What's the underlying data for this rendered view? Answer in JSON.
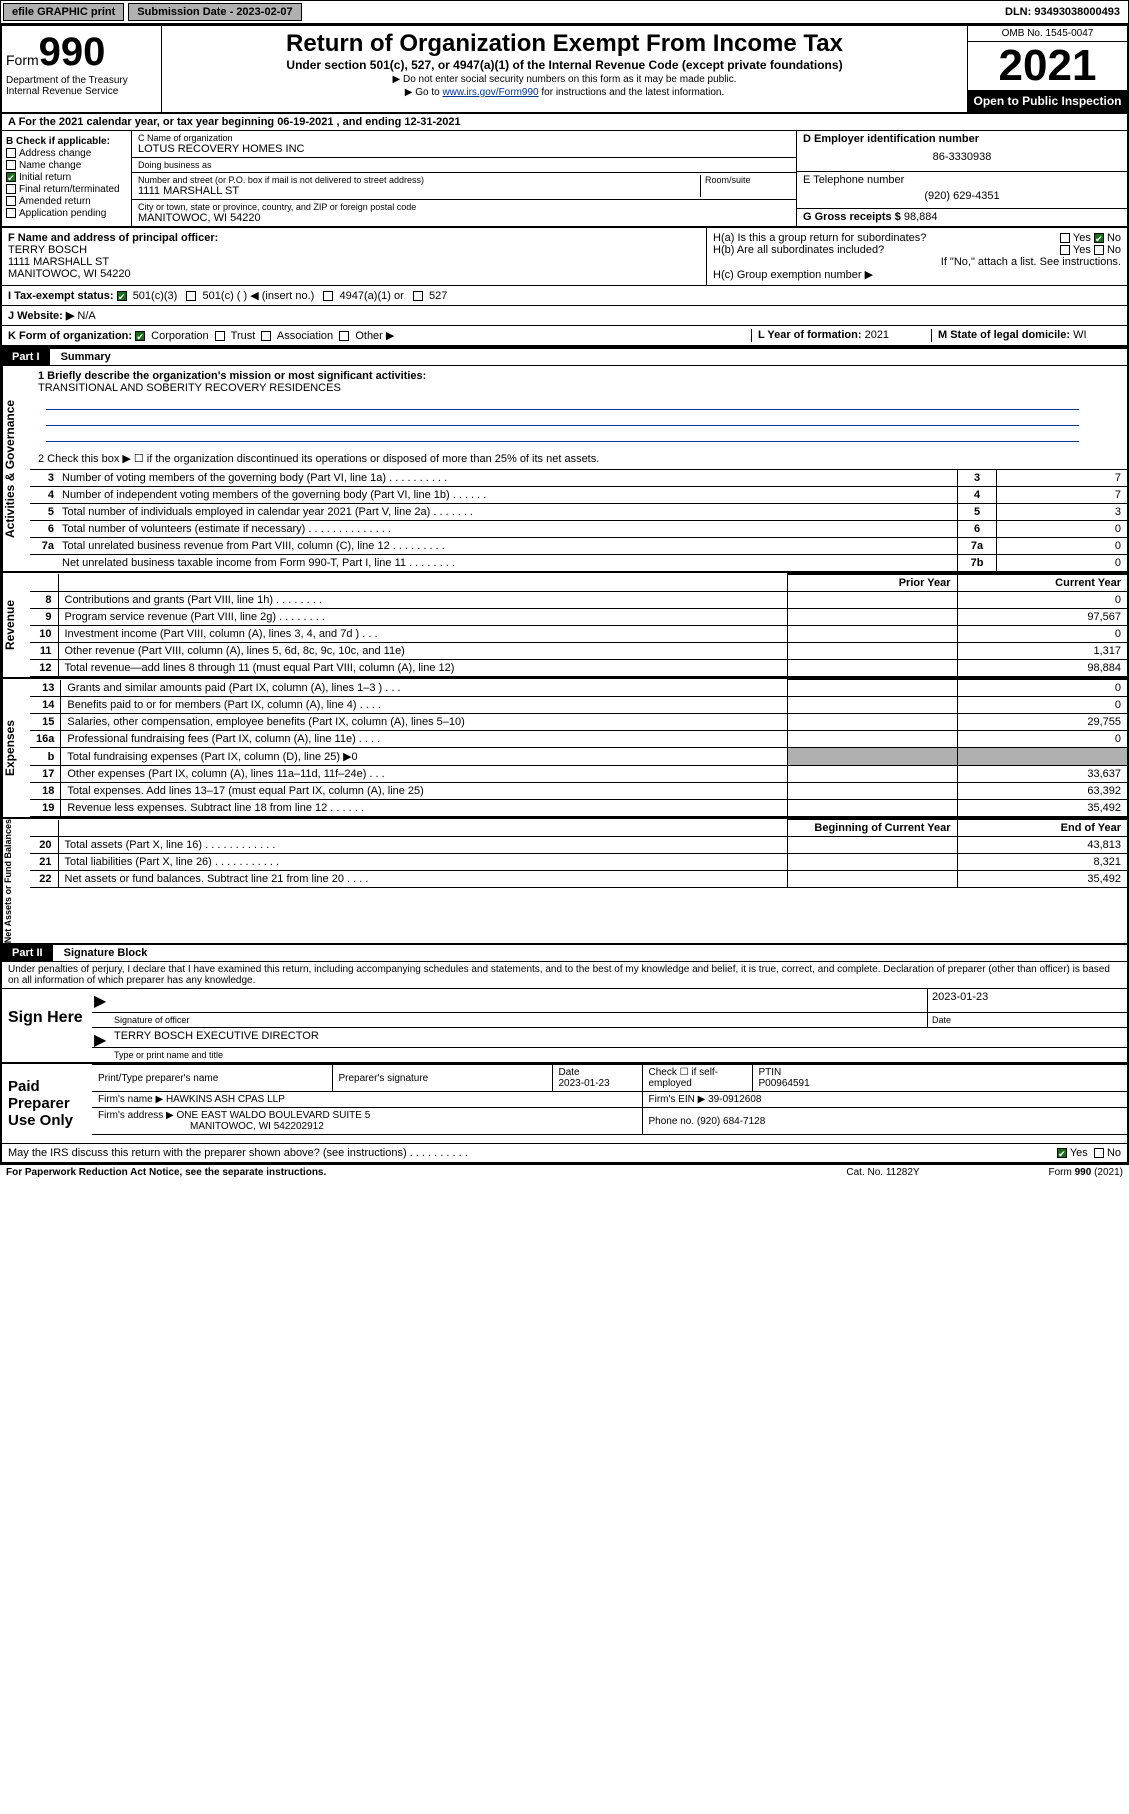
{
  "topbar": {
    "efile": "efile GRAPHIC print",
    "submission_label": "Submission Date - 2023-02-07",
    "dln_label": "DLN: 93493038000493"
  },
  "header": {
    "form_prefix": "Form",
    "form_number": "990",
    "dept": "Department of the Treasury\nInternal Revenue Service",
    "title": "Return of Organization Exempt From Income Tax",
    "sub": "Under section 501(c), 527, or 4947(a)(1) of the Internal Revenue Code (except private foundations)",
    "note1": "▶ Do not enter social security numbers on this form as it may be made public.",
    "note2_pre": "▶ Go to ",
    "note2_link": "www.irs.gov/Form990",
    "note2_post": " for instructions and the latest information.",
    "omb": "OMB No. 1545-0047",
    "year": "2021",
    "open_pub": "Open to Public Inspection"
  },
  "a": {
    "text": "A For the 2021 calendar year, or tax year beginning 06-19-2021   , and ending 12-31-2021"
  },
  "b": {
    "label": "B Check if applicable:",
    "items": [
      "Address change",
      "Name change",
      "Initial return",
      "Final return/terminated",
      "Amended return",
      "Application pending"
    ],
    "checked_index": 2
  },
  "c": {
    "name_label": "C Name of organization",
    "name": "LOTUS RECOVERY HOMES INC",
    "dba_label": "Doing business as",
    "dba": "",
    "street_label": "Number and street (or P.O. box if mail is not delivered to street address)",
    "room_label": "Room/suite",
    "street": "1111 MARSHALL ST",
    "city_label": "City or town, state or province, country, and ZIP or foreign postal code",
    "city": "MANITOWOC, WI  54220"
  },
  "d": {
    "label": "D Employer identification number",
    "value": "86-3330938"
  },
  "e": {
    "label": "E Telephone number",
    "value": "(920) 629-4351"
  },
  "g": {
    "label": "G Gross receipts $",
    "value": "98,884"
  },
  "f": {
    "label": "F Name and address of principal officer:",
    "name": "TERRY BOSCH",
    "street": "1111 MARSHALL ST",
    "city": "MANITOWOC, WI  54220"
  },
  "h": {
    "a_label": "H(a)  Is this a group return for subordinates?",
    "a_yes": "Yes",
    "a_no": "No",
    "b_label": "H(b)  Are all subordinates included?",
    "b_yes": "Yes",
    "b_no": "No",
    "b_note": "If \"No,\" attach a list. See instructions.",
    "c_label": "H(c)  Group exemption number ▶"
  },
  "i": {
    "label": "I   Tax-exempt status:",
    "opts": [
      "501(c)(3)",
      "501(c) (  ) ◀ (insert no.)",
      "4947(a)(1) or",
      "527"
    ]
  },
  "j": {
    "label": "J   Website: ▶",
    "value": "N/A"
  },
  "k": {
    "label": "K Form of organization:",
    "opts": [
      "Corporation",
      "Trust",
      "Association",
      "Other ▶"
    ]
  },
  "l": {
    "label": "L Year of formation:",
    "value": "2021"
  },
  "m": {
    "label": "M State of legal domicile:",
    "value": "WI"
  },
  "part1": {
    "hdr": "Part I",
    "title": "Summary",
    "q1_label": "1   Briefly describe the organization's mission or most significant activities:",
    "q1_text": "TRANSITIONAL AND SOBERITY RECOVERY RESIDENCES",
    "q2": "2   Check this box ▶ ☐  if the organization discontinued its operations or disposed of more than 25% of its net assets.",
    "sidebar_gov": "Activities & Governance",
    "sidebar_rev": "Revenue",
    "sidebar_exp": "Expenses",
    "sidebar_na": "Net Assets or Fund Balances",
    "gov_rows": [
      {
        "n": "3",
        "d": "Number of voting members of the governing body (Part VI, line 1a)  .    .    .    .    .    .    .    .    .    .",
        "box": "3",
        "v": "7"
      },
      {
        "n": "4",
        "d": "Number of independent voting members of the governing body (Part VI, line 1b)   .    .    .    .    .    .",
        "box": "4",
        "v": "7"
      },
      {
        "n": "5",
        "d": "Total number of individuals employed in calendar year 2021 (Part V, line 2a)    .    .    .    .    .    .    .",
        "box": "5",
        "v": "3"
      },
      {
        "n": "6",
        "d": "Total number of volunteers (estimate if necessary)   .    .    .    .    .    .    .    .    .    .    .    .    .    .",
        "box": "6",
        "v": "0"
      },
      {
        "n": "7a",
        "d": "Total unrelated business revenue from Part VIII, column (C), line 12   .    .    .    .    .    .    .    .    .",
        "box": "7a",
        "v": "0"
      },
      {
        "n": "",
        "d": "Net unrelated business taxable income from Form 990-T, Part I, line 11    .    .    .    .    .    .    .    .",
        "box": "7b",
        "v": "0"
      }
    ],
    "col_prior": "Prior Year",
    "col_curr": "Current Year",
    "rev_rows": [
      {
        "n": "8",
        "d": "Contributions and grants (Part VIII, line 1h)   .    .    .    .    .    .    .    .",
        "p": "",
        "c": "0"
      },
      {
        "n": "9",
        "d": "Program service revenue (Part VIII, line 2g)   .    .    .    .    .    .    .    .",
        "p": "",
        "c": "97,567"
      },
      {
        "n": "10",
        "d": "Investment income (Part VIII, column (A), lines 3, 4, and 7d )   .    .    .",
        "p": "",
        "c": "0"
      },
      {
        "n": "11",
        "d": "Other revenue (Part VIII, column (A), lines 5, 6d, 8c, 9c, 10c, and 11e)",
        "p": "",
        "c": "1,317"
      },
      {
        "n": "12",
        "d": "Total revenue—add lines 8 through 11 (must equal Part VIII, column (A), line 12)",
        "p": "",
        "c": "98,884"
      }
    ],
    "exp_rows": [
      {
        "n": "13",
        "d": "Grants and similar amounts paid (Part IX, column (A), lines 1–3 )   .    .    .",
        "p": "",
        "c": "0"
      },
      {
        "n": "14",
        "d": "Benefits paid to or for members (Part IX, column (A), line 4)   .    .    .    .",
        "p": "",
        "c": "0"
      },
      {
        "n": "15",
        "d": "Salaries, other compensation, employee benefits (Part IX, column (A), lines 5–10)",
        "p": "",
        "c": "29,755"
      },
      {
        "n": "16a",
        "d": "Professional fundraising fees (Part IX, column (A), line 11e)   .    .    .    .",
        "p": "",
        "c": "0"
      },
      {
        "n": "b",
        "d": "Total fundraising expenses (Part IX, column (D), line 25) ▶0",
        "p": "shade",
        "c": "shade"
      },
      {
        "n": "17",
        "d": "Other expenses (Part IX, column (A), lines 11a–11d, 11f–24e)   .    .    .",
        "p": "",
        "c": "33,637"
      },
      {
        "n": "18",
        "d": "Total expenses. Add lines 13–17 (must equal Part IX, column (A), line 25)",
        "p": "",
        "c": "63,392"
      },
      {
        "n": "19",
        "d": "Revenue less expenses. Subtract line 18 from line 12   .    .    .    .    .    .",
        "p": "",
        "c": "35,492"
      }
    ],
    "col_begin": "Beginning of Current Year",
    "col_end": "End of Year",
    "na_rows": [
      {
        "n": "20",
        "d": "Total assets (Part X, line 16)   .    .    .    .    .    .    .    .    .    .    .    .",
        "p": "",
        "c": "43,813"
      },
      {
        "n": "21",
        "d": "Total liabilities (Part X, line 26)   .    .    .    .    .    .    .    .    .    .    .",
        "p": "",
        "c": "8,321"
      },
      {
        "n": "22",
        "d": "Net assets or fund balances. Subtract line 21 from line 20   .    .    .    .",
        "p": "",
        "c": "35,492"
      }
    ]
  },
  "part2": {
    "hdr": "Part II",
    "title": "Signature Block",
    "decl": "Under penalties of perjury, I declare that I have examined this return, including accompanying schedules and statements, and to the best of my knowledge and belief, it is true, correct, and complete. Declaration of preparer (other than officer) is based on all information of which preparer has any knowledge.",
    "sign_here": "Sign Here",
    "sig_officer_label": "Signature of officer",
    "date_label": "Date",
    "date_val": "2023-01-23",
    "typed_name": "TERRY BOSCH  EXECUTIVE DIRECTOR",
    "typed_label": "Type or print name and title",
    "paid_label": "Paid Preparer Use Only",
    "prep_name_label": "Print/Type preparer's name",
    "prep_sig_label": "Preparer's signature",
    "prep_date_label": "Date",
    "prep_date": "2023-01-23",
    "check_label": "Check ☐ if self-employed",
    "ptin_label": "PTIN",
    "ptin": "P00964591",
    "firm_name_label": "Firm's name    ▶",
    "firm_name": "HAWKINS ASH CPAS LLP",
    "firm_ein_label": "Firm's EIN ▶",
    "firm_ein": "39-0912608",
    "firm_addr_label": "Firm's address ▶",
    "firm_addr1": "ONE EAST WALDO BOULEVARD SUITE 5",
    "firm_addr2": "MANITOWOC, WI  542202912",
    "phone_label": "Phone no.",
    "phone": "(920) 684-7128",
    "may_irs": "May the IRS discuss this return with the preparer shown above? (see instructions)    .    .    .    .    .    .    .    .    .    .",
    "yes": "Yes",
    "no": "No"
  },
  "footer": {
    "l": "For Paperwork Reduction Act Notice, see the separate instructions.",
    "m": "Cat. No. 11282Y",
    "r": "Form 990 (2021)"
  }
}
